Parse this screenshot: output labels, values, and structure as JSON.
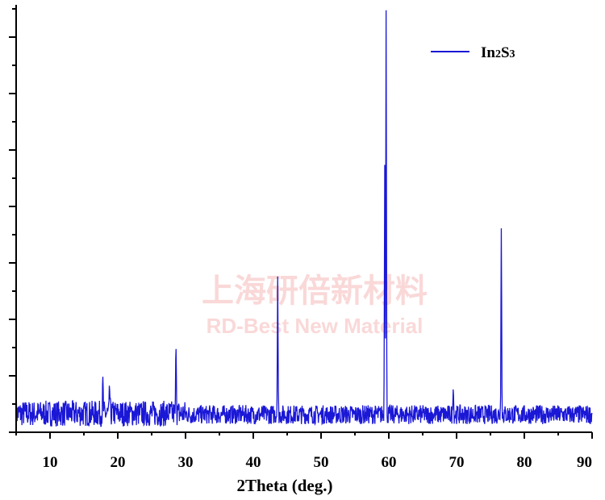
{
  "chart_data": {
    "type": "line",
    "title": "",
    "xlabel": "2Theta (deg.)",
    "ylabel": "",
    "xlim": [
      5,
      90
    ],
    "ylim": [
      0,
      100
    ],
    "x_ticks": [
      10,
      20,
      30,
      40,
      50,
      60,
      70,
      80,
      90
    ],
    "y_tick_labels_shown": false,
    "grid": false,
    "legend": {
      "position": "top-right",
      "entries": [
        "In2S3"
      ]
    },
    "series": [
      {
        "name": "In2S3",
        "color": "#1a17d6",
        "baseline": 3.5,
        "noise_amplitude": 4.5,
        "peaks": [
          {
            "x": 17.8,
            "y": 10.5
          },
          {
            "x": 18.8,
            "y": 9.5
          },
          {
            "x": 28.6,
            "y": 21.5
          },
          {
            "x": 43.6,
            "y": 36.5
          },
          {
            "x": 59.4,
            "y": 62.5
          },
          {
            "x": 59.6,
            "y": 98.5
          },
          {
            "x": 69.5,
            "y": 11.5
          },
          {
            "x": 76.6,
            "y": 49.5
          }
        ]
      }
    ]
  },
  "watermark": {
    "line1": "上海研倍新材料",
    "line2": "RD-Best New Material"
  }
}
